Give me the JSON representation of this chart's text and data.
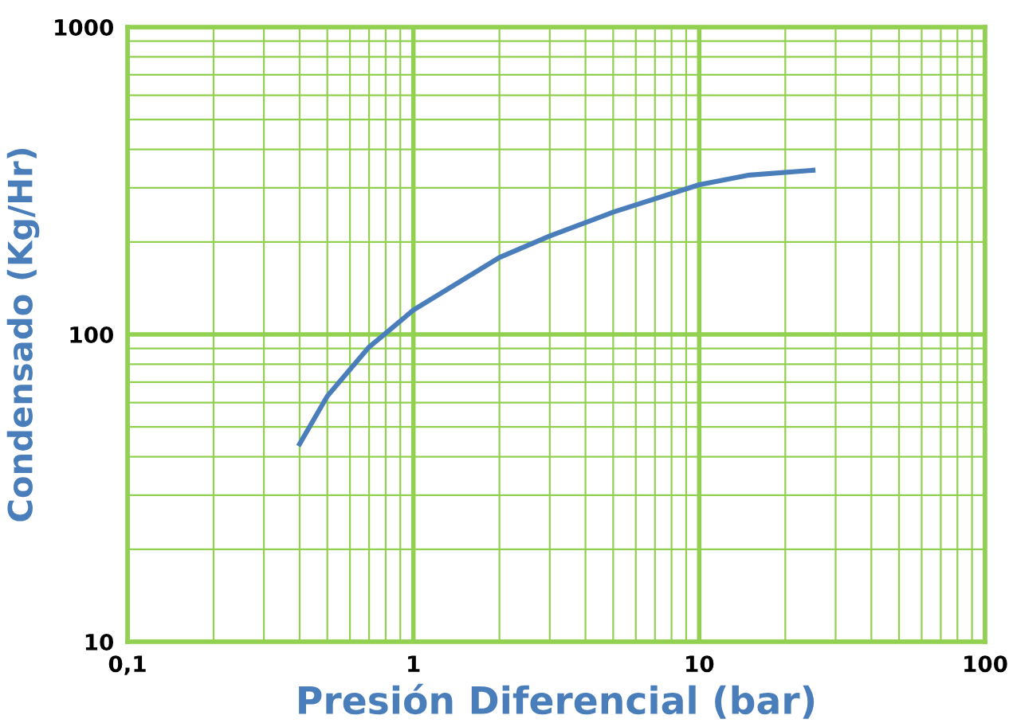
{
  "chart_data": {
    "type": "line",
    "xlabel": "Presión Diferencial (bar)",
    "ylabel": "Condensado (Kg/Hr)",
    "log": "xy",
    "x": [
      0.4,
      0.5,
      0.7,
      1,
      2,
      3,
      5,
      10,
      15,
      25
    ],
    "series": [
      {
        "color": "#4a7ebb",
        "values": [
          44,
          63,
          91,
          120,
          178,
          209,
          250,
          307,
          330,
          342
        ]
      }
    ],
    "xlim": [
      0.1,
      100
    ],
    "ylim": [
      10,
      1000
    ],
    "xticks": [
      {
        "value": 0.1,
        "label": "0,1"
      },
      {
        "value": 0.2,
        "label": null
      },
      {
        "value": 0.3,
        "label": null
      },
      {
        "value": 0.4,
        "label": null
      },
      {
        "value": 0.5,
        "label": null
      },
      {
        "value": 0.6,
        "label": null
      },
      {
        "value": 0.7,
        "label": null
      },
      {
        "value": 0.8,
        "label": null
      },
      {
        "value": 0.9,
        "label": null
      },
      1,
      {
        "value": 2,
        "label": null
      },
      {
        "value": 3,
        "label": null
      },
      {
        "value": 4,
        "label": null
      },
      {
        "value": 5,
        "label": null
      },
      {
        "value": 6,
        "label": null
      },
      {
        "value": 7,
        "label": null
      },
      {
        "value": 8,
        "label": null
      },
      {
        "value": 9,
        "label": null
      },
      10,
      {
        "value": 20,
        "label": null
      },
      {
        "value": 30,
        "label": null
      },
      {
        "value": 40,
        "label": null
      },
      {
        "value": 50,
        "label": null
      },
      {
        "value": 60,
        "label": null
      },
      {
        "value": 70,
        "label": null
      },
      {
        "value": 80,
        "label": null
      },
      {
        "value": 90,
        "label": null
      },
      100
    ],
    "yticks": [
      10,
      {
        "value": 20,
        "label": null
      },
      {
        "value": 30,
        "label": null
      },
      {
        "value": 40,
        "label": null
      },
      {
        "value": 50,
        "label": null
      },
      {
        "value": 60,
        "label": null
      },
      {
        "value": 70,
        "label": null
      },
      {
        "value": 80,
        "label": null
      },
      {
        "value": 90,
        "label": null
      },
      100,
      {
        "value": 200,
        "label": null
      },
      {
        "value": 300,
        "label": null
      },
      {
        "value": 400,
        "label": null
      },
      {
        "value": 500,
        "label": null
      },
      {
        "value": 600,
        "label": null
      },
      {
        "value": 700,
        "label": null
      },
      {
        "value": 800,
        "label": null
      },
      {
        "value": 900,
        "label": null
      },
      1000
    ],
    "grid": true,
    "line_style": "solid",
    "marker": "none"
  }
}
